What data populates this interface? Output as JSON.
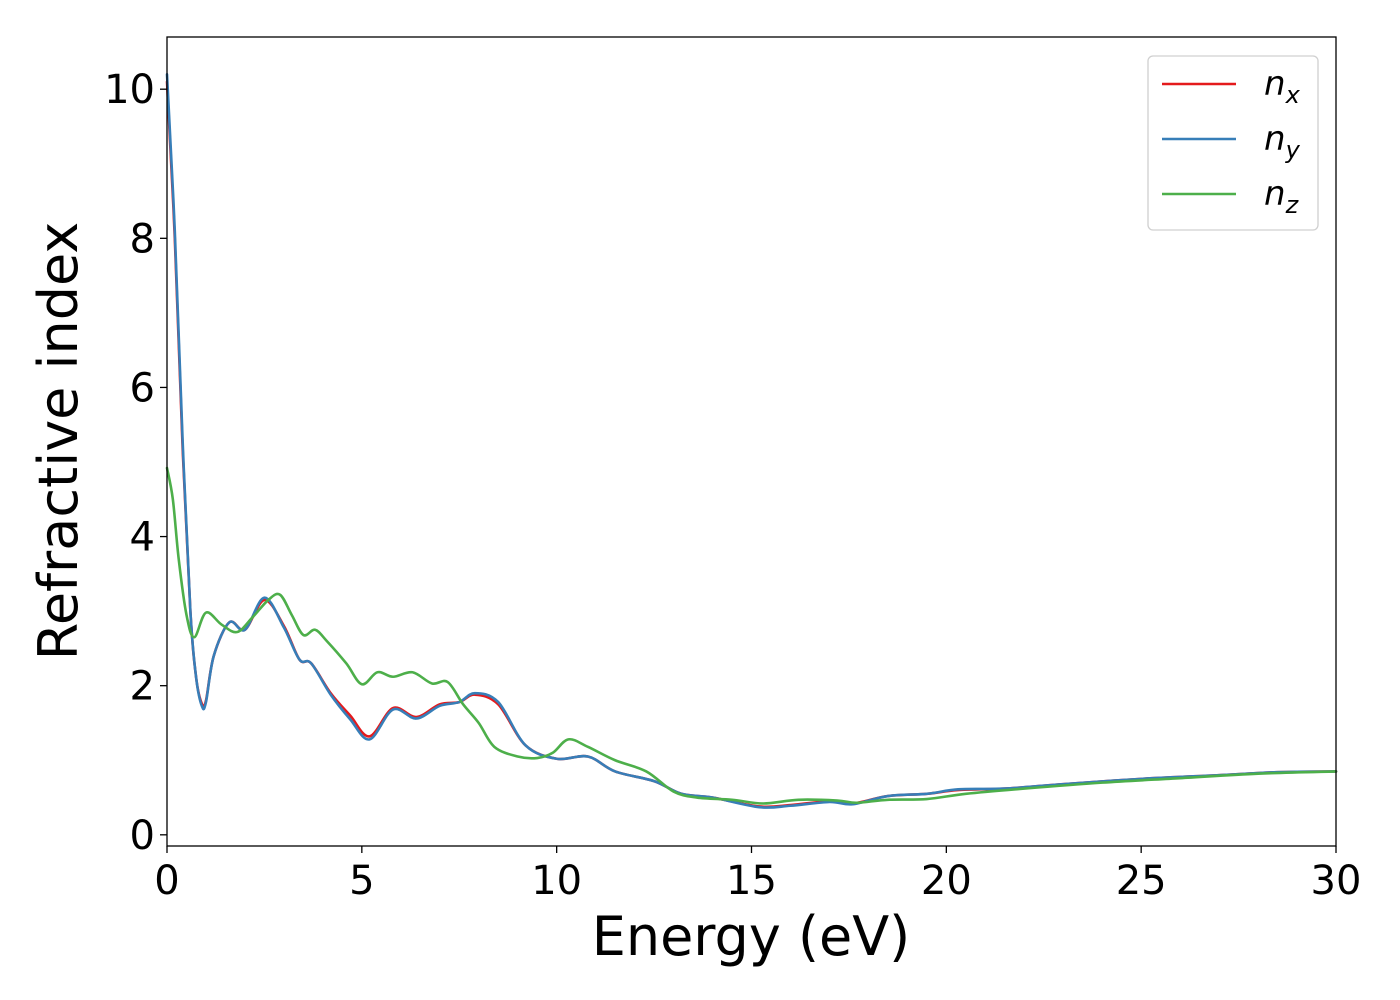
{
  "chart_data": {
    "type": "line",
    "title": "",
    "xlabel": "Energy (eV)",
    "ylabel": "Refractive index",
    "xlim": [
      0,
      30
    ],
    "ylim": [
      -0.15,
      10.7
    ],
    "xticks": [
      0,
      5,
      10,
      15,
      20,
      25,
      30
    ],
    "yticks": [
      0,
      2,
      4,
      6,
      8,
      10
    ],
    "grid": false,
    "legend_position": "top-right",
    "series": [
      {
        "name": "n",
        "subscript": "x",
        "color": "#e41a1c",
        "x": [
          0,
          0.2,
          0.4,
          0.6,
          0.75,
          0.9,
          1.0,
          1.2,
          1.6,
          2.0,
          2.5,
          3.0,
          3.4,
          3.7,
          4.2,
          4.7,
          5.2,
          5.8,
          6.4,
          7.0,
          7.5,
          7.9,
          8.5,
          9.2,
          10.0,
          10.8,
          11.5,
          12.5,
          13.2,
          14.0,
          15.2,
          16.0,
          17.0,
          17.6,
          18.5,
          19.5,
          20.3,
          21.5,
          23.0,
          25.0,
          27.0,
          28.5,
          30
        ],
        "y": [
          10.1,
          8.0,
          5.2,
          3.0,
          2.1,
          1.75,
          1.8,
          2.4,
          2.85,
          2.75,
          3.15,
          2.8,
          2.35,
          2.3,
          1.9,
          1.6,
          1.32,
          1.7,
          1.58,
          1.75,
          1.78,
          1.88,
          1.75,
          1.2,
          1.02,
          1.05,
          0.85,
          0.72,
          0.55,
          0.5,
          0.38,
          0.4,
          0.45,
          0.42,
          0.52,
          0.55,
          0.6,
          0.62,
          0.68,
          0.75,
          0.8,
          0.84,
          0.85
        ]
      },
      {
        "name": "n",
        "subscript": "y",
        "color": "#377eb8",
        "x": [
          0,
          0.2,
          0.4,
          0.6,
          0.75,
          0.9,
          1.0,
          1.2,
          1.6,
          2.0,
          2.5,
          3.0,
          3.4,
          3.7,
          4.2,
          4.7,
          5.2,
          5.8,
          6.4,
          7.0,
          7.5,
          7.9,
          8.5,
          9.2,
          10.0,
          10.8,
          11.5,
          12.5,
          13.2,
          14.0,
          15.2,
          16.0,
          17.0,
          17.6,
          18.5,
          19.5,
          20.3,
          21.5,
          23.0,
          25.0,
          27.0,
          28.5,
          30
        ],
        "y": [
          10.2,
          8.1,
          5.3,
          3.0,
          2.1,
          1.72,
          1.78,
          2.4,
          2.85,
          2.75,
          3.18,
          2.78,
          2.35,
          2.3,
          1.88,
          1.55,
          1.28,
          1.68,
          1.56,
          1.73,
          1.78,
          1.9,
          1.78,
          1.2,
          1.02,
          1.05,
          0.85,
          0.72,
          0.55,
          0.5,
          0.37,
          0.39,
          0.44,
          0.41,
          0.52,
          0.55,
          0.61,
          0.62,
          0.68,
          0.75,
          0.8,
          0.84,
          0.85
        ]
      },
      {
        "name": "n",
        "subscript": "z",
        "color": "#4daf4a",
        "x": [
          0,
          0.15,
          0.3,
          0.5,
          0.7,
          1.0,
          1.4,
          1.8,
          2.2,
          2.6,
          2.9,
          3.2,
          3.5,
          3.8,
          4.1,
          4.6,
          5.0,
          5.4,
          5.8,
          6.3,
          6.8,
          7.2,
          7.6,
          8.0,
          8.4,
          9.0,
          9.5,
          9.9,
          10.3,
          10.8,
          11.5,
          12.3,
          13.0,
          13.6,
          14.5,
          15.3,
          16.2,
          17.2,
          17.7,
          18.5,
          19.5,
          20.5,
          22.0,
          24.0,
          26.0,
          28.0,
          30
        ],
        "y": [
          4.92,
          4.5,
          3.7,
          2.95,
          2.65,
          2.98,
          2.82,
          2.72,
          2.92,
          3.15,
          3.22,
          2.95,
          2.68,
          2.75,
          2.6,
          2.3,
          2.02,
          2.18,
          2.12,
          2.18,
          2.03,
          2.05,
          1.75,
          1.5,
          1.18,
          1.05,
          1.03,
          1.1,
          1.28,
          1.18,
          1.0,
          0.85,
          0.58,
          0.5,
          0.47,
          0.42,
          0.47,
          0.46,
          0.43,
          0.47,
          0.48,
          0.55,
          0.62,
          0.7,
          0.76,
          0.82,
          0.85
        ]
      }
    ]
  }
}
